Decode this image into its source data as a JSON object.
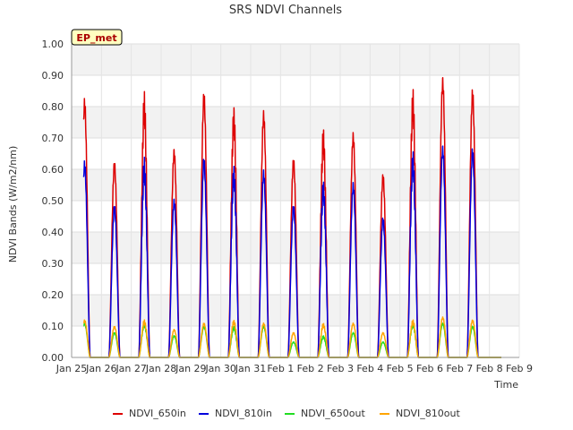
{
  "chart_data": {
    "type": "line",
    "title": "SRS NDVI Channels",
    "xlabel": "Time",
    "ylabel": "NDVI Bands (W/m2/nm)",
    "ylim": [
      0.0,
      1.0
    ],
    "xlim_days": [
      0,
      15
    ],
    "badge": "EP_met",
    "y_ticks": [
      "0.00",
      "0.10",
      "0.20",
      "0.30",
      "0.40",
      "0.50",
      "0.60",
      "0.70",
      "0.80",
      "0.90",
      "1.00"
    ],
    "x_ticks": [
      "Jan 25",
      "Jan 26",
      "Jan 27",
      "Jan 28",
      "Jan 29",
      "Jan 30",
      "Jan 31",
      "Feb 1",
      "Feb 2",
      "Feb 3",
      "Feb 4",
      "Feb 5",
      "Feb 6",
      "Feb 7",
      "Feb 8",
      "Feb 9"
    ],
    "data_start_day": 0.4,
    "data_end_day": 14.4,
    "day_peaks": [
      {
        "day_index": 0,
        "in650": 0.83,
        "in810": 0.63,
        "out650": 0.11,
        "out810": 0.12
      },
      {
        "day_index": 1,
        "in650": 0.63,
        "in810": 0.49,
        "out650": 0.08,
        "out810": 0.1
      },
      {
        "day_index": 2,
        "in650": 0.85,
        "in810": 0.64,
        "out650": 0.11,
        "out810": 0.12
      },
      {
        "day_index": 3,
        "in650": 0.67,
        "in810": 0.51,
        "out650": 0.07,
        "out810": 0.09
      },
      {
        "day_index": 4,
        "in650": 0.85,
        "in810": 0.64,
        "out650": 0.1,
        "out810": 0.11
      },
      {
        "day_index": 5,
        "in650": 0.81,
        "in810": 0.62,
        "out650": 0.1,
        "out810": 0.12
      },
      {
        "day_index": 6,
        "in650": 0.79,
        "in810": 0.6,
        "out650": 0.1,
        "out810": 0.11
      },
      {
        "day_index": 7,
        "in650": 0.64,
        "in810": 0.49,
        "out650": 0.05,
        "out810": 0.08
      },
      {
        "day_index": 8,
        "in650": 0.74,
        "in810": 0.57,
        "out650": 0.07,
        "out810": 0.11
      },
      {
        "day_index": 9,
        "in650": 0.72,
        "in810": 0.56,
        "out650": 0.08,
        "out810": 0.11
      },
      {
        "day_index": 10,
        "in650": 0.59,
        "in810": 0.45,
        "out650": 0.05,
        "out810": 0.08
      },
      {
        "day_index": 11,
        "in650": 0.86,
        "in810": 0.66,
        "out650": 0.11,
        "out810": 0.12
      },
      {
        "day_index": 12,
        "in650": 0.9,
        "in810": 0.68,
        "out650": 0.11,
        "out810": 0.13
      },
      {
        "day_index": 13,
        "in650": 0.86,
        "in810": 0.67,
        "out650": 0.1,
        "out810": 0.12
      }
    ],
    "series": [
      {
        "name": "NDVI_650in",
        "key": "in650",
        "color": "#dd0000"
      },
      {
        "name": "NDVI_810in",
        "key": "in810",
        "color": "#0000dd"
      },
      {
        "name": "NDVI_650out",
        "key": "out650",
        "color": "#22dd22"
      },
      {
        "name": "NDVI_810out",
        "key": "out810",
        "color": "#ffa500"
      }
    ],
    "legend_position": "bottom",
    "grid": true
  }
}
